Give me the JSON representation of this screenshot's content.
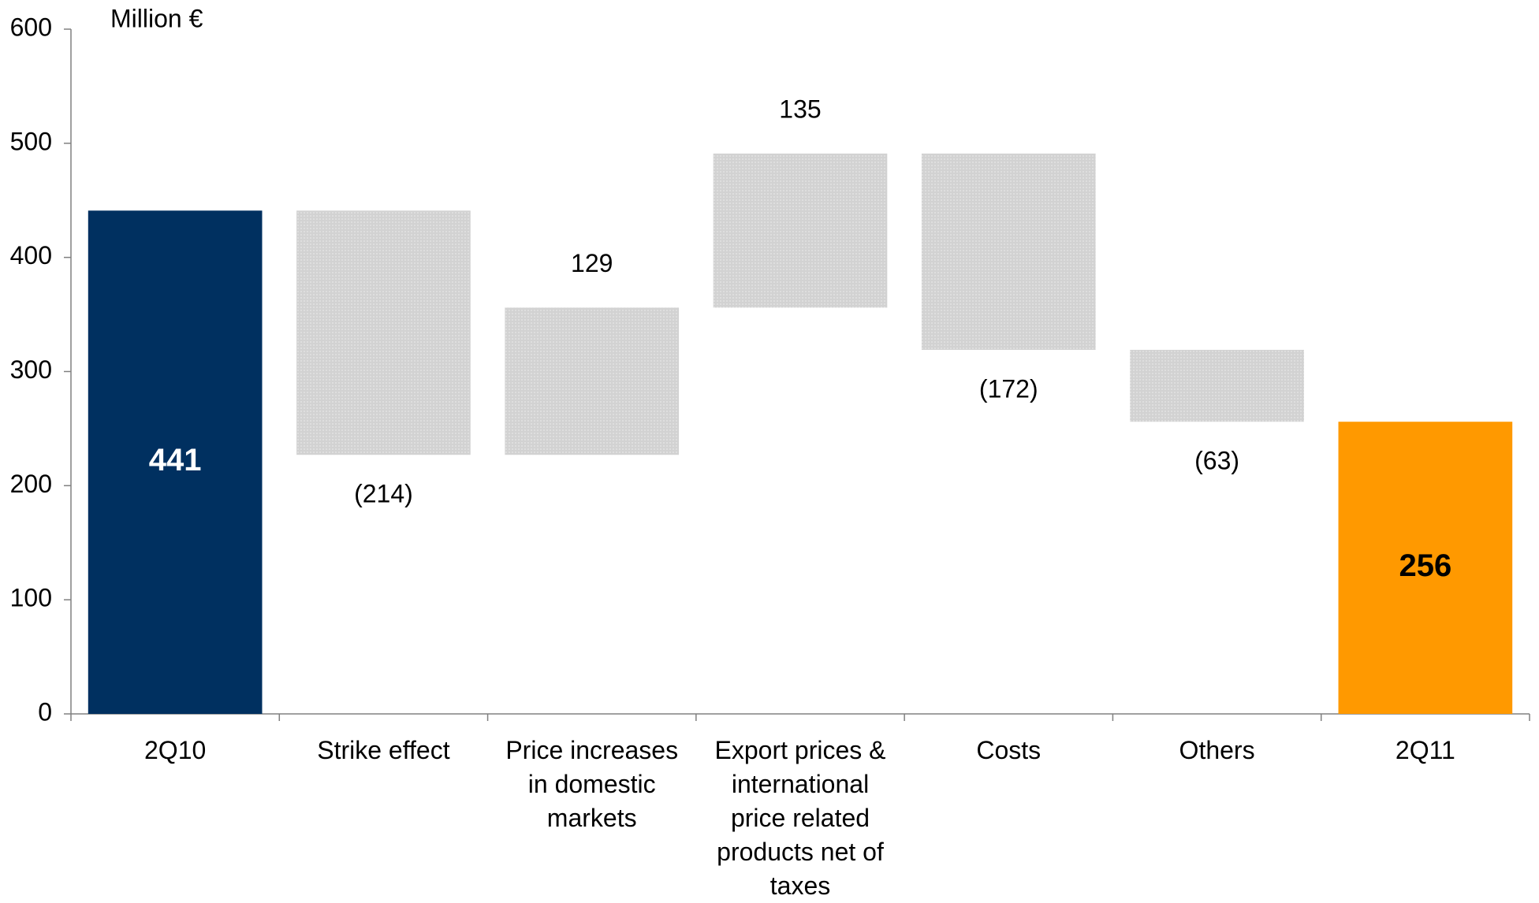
{
  "chart_data": {
    "type": "waterfall",
    "ylabel": "Million €",
    "categories": [
      "2Q10",
      "Strike effect",
      "Price increases in domestic markets",
      "Export prices & international price related products net of taxes",
      "Costs",
      "Others",
      "2Q11"
    ],
    "values": [
      441,
      -214,
      129,
      135,
      -172,
      -63,
      256
    ],
    "value_labels": [
      "441",
      "(214)",
      "129",
      "135",
      "(172)",
      "(63)",
      "256"
    ],
    "measure": [
      "absolute",
      "relative",
      "relative",
      "relative",
      "relative",
      "relative",
      "absolute"
    ],
    "colors": [
      "#003060",
      "#d2d2d2",
      "#d2d2d2",
      "#d2d2d2",
      "#d2d2d2",
      "#d2d2d2",
      "#ff9900"
    ],
    "value_label_colors": [
      "#ffffff",
      "#000000",
      "#000000",
      "#000000",
      "#000000",
      "#000000",
      "#000000"
    ],
    "ylim": [
      0,
      600
    ],
    "yticks": [
      0,
      100,
      200,
      300,
      400,
      500,
      600
    ],
    "grid": false
  }
}
